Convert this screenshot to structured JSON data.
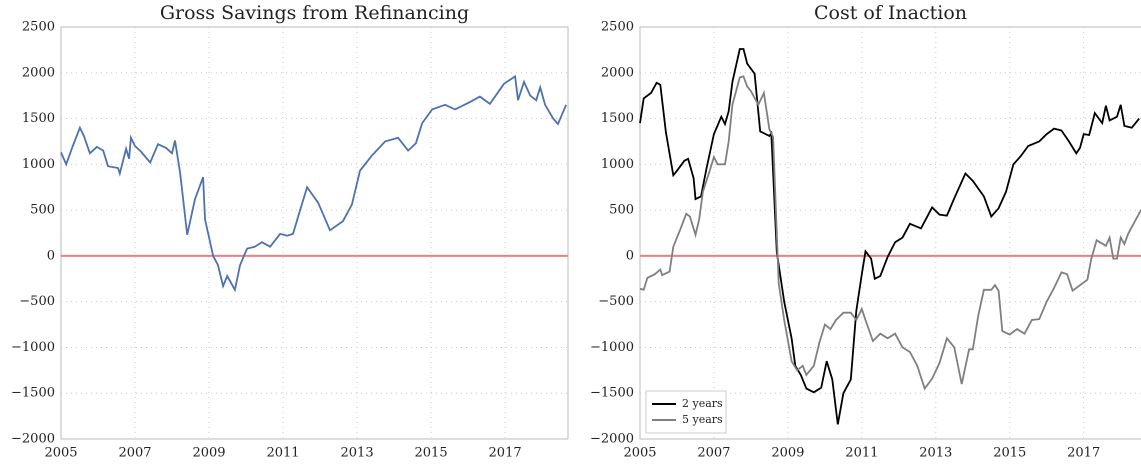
{
  "chart_data": [
    {
      "type": "line",
      "title": "Gross Savings from Refinancing",
      "xlim": [
        2005,
        2018.7
      ],
      "ylim": [
        -2000,
        2500
      ],
      "xticks": [
        2005,
        2007,
        2009,
        2011,
        2013,
        2015,
        2017
      ],
      "yticks": [
        {
          "value": -2000,
          "label": "−2000"
        },
        {
          "value": -1500,
          "label": "−1500"
        },
        {
          "value": -1000,
          "label": "−1000"
        },
        {
          "value": -500,
          "label": "−500"
        },
        0,
        500,
        1000,
        1500,
        2000,
        2500
      ],
      "grid": true,
      "hline": 0,
      "hline_color": "#f08080",
      "series": [
        {
          "color": "#4c72b0",
          "x": [
            2005.0,
            2005.14,
            2005.32,
            2005.51,
            2005.62,
            2005.78,
            2005.97,
            2006.14,
            2006.27,
            2006.54,
            2006.59,
            2006.76,
            2006.84,
            2006.89,
            2007.0,
            2007.16,
            2007.41,
            2007.62,
            2007.84,
            2008.0,
            2008.08,
            2008.22,
            2008.41,
            2008.62,
            2008.84,
            2008.89,
            2009.03,
            2009.11,
            2009.24,
            2009.38,
            2009.49,
            2009.7,
            2009.84,
            2010.03,
            2010.24,
            2010.43,
            2010.65,
            2010.92,
            2011.11,
            2011.27,
            2011.46,
            2011.65,
            2011.95,
            2012.27,
            2012.62,
            2012.86,
            2013.08,
            2013.41,
            2013.76,
            2014.11,
            2014.38,
            2014.59,
            2014.76,
            2015.03,
            2015.38,
            2015.65,
            2016.05,
            2016.32,
            2016.59,
            2016.97,
            2017.27,
            2017.35,
            2017.51,
            2017.68,
            2017.84,
            2017.95,
            2018.08,
            2018.3,
            2018.43,
            2018.65
          ],
          "values": [
            1130,
            1000,
            1200,
            1400,
            1310,
            1120,
            1190,
            1150,
            980,
            960,
            900,
            1170,
            1060,
            1290,
            1200,
            1140,
            1020,
            1220,
            1180,
            1120,
            1260,
            900,
            230,
            620,
            860,
            400,
            150,
            0,
            -100,
            -330,
            -220,
            -370,
            -100,
            80,
            100,
            150,
            100,
            240,
            220,
            240,
            500,
            750,
            580,
            280,
            380,
            560,
            930,
            1100,
            1250,
            1290,
            1150,
            1230,
            1450,
            1600,
            1650,
            1600,
            1680,
            1740,
            1660,
            1880,
            1960,
            1700,
            1900,
            1750,
            1700,
            1840,
            1650,
            1500,
            1440,
            1650
          ]
        }
      ]
    },
    {
      "type": "line",
      "title": "Cost of Inaction",
      "xlim": [
        2005,
        2018.55
      ],
      "ylim": [
        -2000,
        2500
      ],
      "xticks": [
        2005,
        2007,
        2009,
        2011,
        2013,
        2015,
        2017
      ],
      "yticks": [
        {
          "value": -2000,
          "label": "−2000"
        },
        {
          "value": -1500,
          "label": "−1500"
        },
        {
          "value": -1000,
          "label": "−1000"
        },
        {
          "value": -500,
          "label": "−500"
        },
        0,
        500,
        1000,
        1500,
        2000,
        2500
      ],
      "grid": true,
      "hline": 0,
      "hline_color": "#f08080",
      "legend": "lower left",
      "series": [
        {
          "name": "2 years",
          "color": "#000000",
          "x": [
            2005.0,
            2005.1,
            2005.3,
            2005.45,
            2005.55,
            2005.7,
            2005.9,
            2006.0,
            2006.2,
            2006.3,
            2006.45,
            2006.5,
            2006.65,
            2006.8,
            2007.0,
            2007.2,
            2007.3,
            2007.4,
            2007.5,
            2007.7,
            2007.8,
            2007.9,
            2008.1,
            2008.25,
            2008.5,
            2008.55,
            2008.7,
            2008.9,
            2009.1,
            2009.2,
            2009.35,
            2009.5,
            2009.7,
            2009.9,
            2010.05,
            2010.2,
            2010.35,
            2010.5,
            2010.7,
            2010.85,
            2011.0,
            2011.1,
            2011.25,
            2011.35,
            2011.5,
            2011.7,
            2011.9,
            2012.1,
            2012.3,
            2012.6,
            2012.9,
            2013.1,
            2013.3,
            2013.5,
            2013.8,
            2014.0,
            2014.3,
            2014.5,
            2014.7,
            2014.9,
            2015.1,
            2015.3,
            2015.5,
            2015.8,
            2016.0,
            2016.2,
            2016.4,
            2016.6,
            2016.8,
            2016.9,
            2017.0,
            2017.15,
            2017.3,
            2017.5,
            2017.6,
            2017.7,
            2017.9,
            2018.0,
            2018.1,
            2018.3,
            2018.5
          ],
          "values": [
            1450,
            1720,
            1780,
            1890,
            1870,
            1350,
            880,
            930,
            1040,
            1060,
            850,
            620,
            650,
            960,
            1330,
            1520,
            1440,
            1580,
            1900,
            2260,
            2260,
            2100,
            1990,
            1360,
            1310,
            1340,
            40,
            -500,
            -900,
            -1200,
            -1300,
            -1450,
            -1490,
            -1440,
            -1150,
            -1350,
            -1840,
            -1500,
            -1350,
            -600,
            -200,
            50,
            -30,
            -250,
            -220,
            -10,
            150,
            200,
            350,
            300,
            530,
            450,
            440,
            630,
            900,
            820,
            650,
            430,
            520,
            700,
            1000,
            1090,
            1200,
            1250,
            1330,
            1390,
            1370,
            1250,
            1120,
            1180,
            1330,
            1320,
            1560,
            1450,
            1640,
            1480,
            1520,
            1650,
            1420,
            1400,
            1500
          ]
        },
        {
          "name": "5 years",
          "color": "#808080",
          "x": [
            2005.0,
            2005.1,
            2005.2,
            2005.4,
            2005.55,
            2005.6,
            2005.8,
            2005.9,
            2006.1,
            2006.25,
            2006.35,
            2006.5,
            2006.6,
            2006.7,
            2006.9,
            2007.0,
            2007.1,
            2007.3,
            2007.4,
            2007.5,
            2007.7,
            2007.8,
            2007.9,
            2008.0,
            2008.2,
            2008.35,
            2008.5,
            2008.6,
            2008.75,
            2008.9,
            2009.1,
            2009.25,
            2009.4,
            2009.5,
            2009.7,
            2009.85,
            2010.0,
            2010.15,
            2010.3,
            2010.5,
            2010.7,
            2010.85,
            2011.0,
            2011.1,
            2011.3,
            2011.5,
            2011.7,
            2011.9,
            2012.1,
            2012.3,
            2012.5,
            2012.7,
            2012.9,
            2013.1,
            2013.3,
            2013.5,
            2013.7,
            2013.9,
            2014.0,
            2014.15,
            2014.3,
            2014.5,
            2014.6,
            2014.7,
            2014.8,
            2015.0,
            2015.2,
            2015.4,
            2015.6,
            2015.8,
            2016.0,
            2016.2,
            2016.4,
            2016.55,
            2016.7,
            2016.9,
            2017.1,
            2017.2,
            2017.35,
            2017.6,
            2017.7,
            2017.8,
            2017.9,
            2018.0,
            2018.1,
            2018.2,
            2018.4,
            2018.55
          ],
          "values": [
            -360,
            -370,
            -240,
            -200,
            -150,
            -210,
            -170,
            100,
            300,
            460,
            430,
            230,
            400,
            700,
            950,
            1080,
            1000,
            1000,
            1250,
            1650,
            1950,
            1960,
            1850,
            1800,
            1650,
            1780,
            1380,
            1300,
            -300,
            -700,
            -1150,
            -1250,
            -1200,
            -1300,
            -1200,
            -950,
            -750,
            -800,
            -700,
            -620,
            -620,
            -700,
            -580,
            -700,
            -930,
            -850,
            -900,
            -850,
            -1000,
            -1050,
            -1200,
            -1450,
            -1340,
            -1170,
            -900,
            -1000,
            -1400,
            -1020,
            -1020,
            -650,
            -370,
            -370,
            -320,
            -380,
            -820,
            -860,
            -800,
            -850,
            -700,
            -690,
            -500,
            -350,
            -180,
            -200,
            -380,
            -320,
            -260,
            -40,
            170,
            110,
            200,
            -30,
            -30,
            200,
            130,
            240,
            390,
            500
          ]
        }
      ]
    }
  ]
}
